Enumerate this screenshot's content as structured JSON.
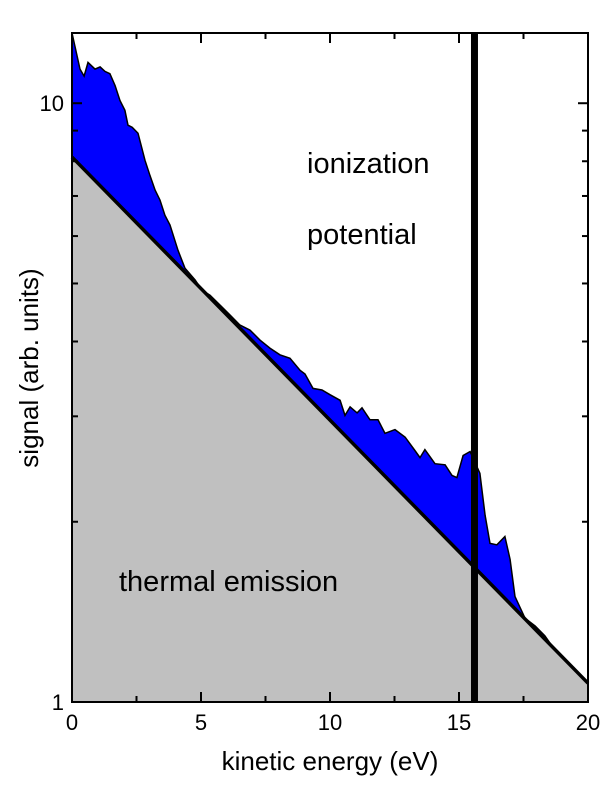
{
  "chart_data": {
    "type": "area",
    "title": "",
    "xlabel": "kinetic energy (eV)",
    "ylabel": "signal (arb. units)",
    "xlim": [
      0,
      20
    ],
    "ylim": [
      1,
      13.1
    ],
    "yscale": "log",
    "x_ticks": [
      0,
      5,
      10,
      15,
      20
    ],
    "x_tick_labels": [
      "0",
      "5",
      "10",
      "15",
      "20"
    ],
    "y_ticks": [
      1,
      10
    ],
    "y_tick_labels": [
      "1",
      "10"
    ],
    "grid": false,
    "series": [
      {
        "name": "signal",
        "color": "#0000ff",
        "x": [
          0.0,
          0.31,
          0.47,
          0.62,
          0.89,
          1.09,
          1.28,
          1.47,
          1.67,
          1.86,
          2.05,
          2.17,
          2.33,
          2.56,
          2.83,
          3.02,
          3.22,
          3.41,
          3.6,
          3.8,
          4.11,
          4.38,
          4.77,
          5.04,
          5.35,
          5.74,
          6.12,
          6.51,
          6.9,
          7.29,
          7.67,
          8.06,
          8.45,
          8.84,
          9.03,
          9.34,
          9.69,
          10.0,
          10.39,
          10.58,
          10.78,
          11.05,
          11.24,
          11.55,
          11.86,
          12.13,
          12.52,
          12.91,
          13.29,
          13.49,
          13.68,
          14.07,
          14.46,
          14.73,
          14.92,
          15.16,
          15.43,
          15.81,
          16.01,
          16.2,
          16.47,
          16.78,
          16.98,
          17.17,
          17.56,
          17.95,
          18.33,
          18.72,
          19.11,
          19.42,
          19.69,
          20.0
        ],
        "y": [
          13.1,
          11.4,
          11.1,
          11.7,
          11.4,
          11.5,
          11.3,
          11.2,
          10.7,
          10.1,
          9.73,
          9.19,
          9.12,
          8.91,
          8.03,
          7.58,
          7.16,
          6.89,
          6.5,
          6.26,
          5.68,
          5.3,
          5.07,
          4.87,
          4.78,
          4.6,
          4.43,
          4.26,
          4.18,
          4.02,
          3.9,
          3.8,
          3.75,
          3.58,
          3.53,
          3.34,
          3.32,
          3.26,
          3.19,
          3.01,
          3.11,
          3.04,
          3.1,
          2.96,
          2.96,
          2.81,
          2.85,
          2.77,
          2.63,
          2.56,
          2.64,
          2.5,
          2.49,
          2.39,
          2.37,
          2.58,
          2.62,
          2.41,
          2.05,
          1.84,
          1.83,
          1.89,
          1.73,
          1.5,
          1.38,
          1.34,
          1.29,
          1.22,
          1.15,
          1.09,
          1.07,
          1.05
        ]
      },
      {
        "name": "thermal emission",
        "color": "#c0c0c0",
        "x": [
          0,
          20
        ],
        "y": [
          8.13,
          1.075
        ]
      }
    ],
    "vline": {
      "name": "ionization potential",
      "x": 15.6
    },
    "annotations": {
      "ionization": "ionization",
      "potential": "potential",
      "thermal": "thermal emission"
    }
  }
}
